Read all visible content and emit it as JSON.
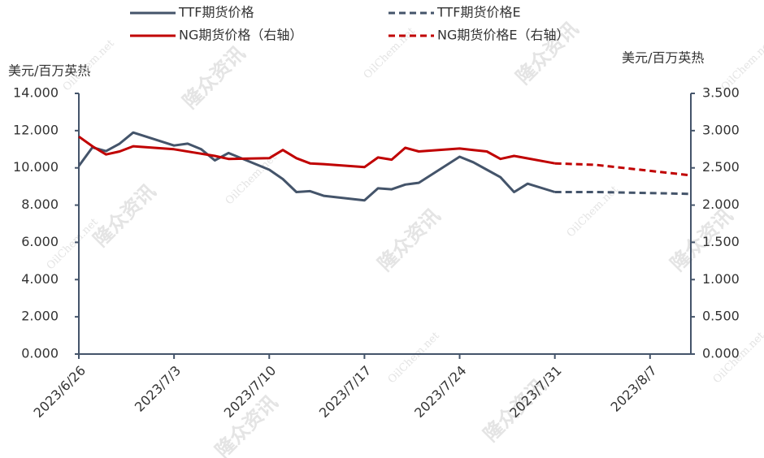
{
  "chart_data": {
    "type": "line",
    "watermark": [
      "隆众资讯",
      "OilChem.net"
    ],
    "y_label": "美元/百万英热",
    "y2_label": "美元/百万英热",
    "xlim": [
      "2023/6/26",
      "2023/8/10"
    ],
    "xticks": [
      "2023/6/26",
      "2023/7/3",
      "2023/7/10",
      "2023/7/17",
      "2023/7/24",
      "2023/7/31",
      "2023/8/7"
    ],
    "ylim": [
      0,
      14
    ],
    "yticks": [
      {
        "value": 0,
        "label": "0.000"
      },
      {
        "value": 2,
        "label": "2.000"
      },
      {
        "value": 4,
        "label": "4.000"
      },
      {
        "value": 6,
        "label": "6.000"
      },
      {
        "value": 8,
        "label": "8.000"
      },
      {
        "value": 10,
        "label": "10.000"
      },
      {
        "value": 12,
        "label": "12.000"
      },
      {
        "value": 14,
        "label": "14.000"
      }
    ],
    "y2lim": [
      0,
      3.5
    ],
    "y2ticks": [
      {
        "value": 0,
        "label": "0.000"
      },
      {
        "value": 0.5,
        "label": "0.500"
      },
      {
        "value": 1,
        "label": "1.000"
      },
      {
        "value": 1.5,
        "label": "1.500"
      },
      {
        "value": 2,
        "label": "2.000"
      },
      {
        "value": 2.5,
        "label": "2.500"
      },
      {
        "value": 3,
        "label": "3.000"
      },
      {
        "value": 3.5,
        "label": "3.500"
      }
    ],
    "series": [
      {
        "name": "TTF期货价格",
        "color": "#44546a",
        "dashed": false,
        "x": [
          "2023/6/26",
          "2023/6/27",
          "2023/6/28",
          "2023/6/29",
          "2023/6/30",
          "2023/7/3",
          "2023/7/4",
          "2023/7/5",
          "2023/7/6",
          "2023/7/7",
          "2023/7/10",
          "2023/7/11",
          "2023/7/12",
          "2023/7/13",
          "2023/7/14",
          "2023/7/17",
          "2023/7/18",
          "2023/7/19",
          "2023/7/20",
          "2023/7/21",
          "2023/7/24",
          "2023/7/25",
          "2023/7/26",
          "2023/7/27",
          "2023/7/28",
          "2023/7/29",
          "2023/7/31"
        ],
        "values": [
          10.1,
          11.1,
          10.9,
          11.3,
          11.9,
          11.2,
          11.3,
          11.0,
          10.4,
          10.8,
          9.9,
          9.4,
          8.7,
          8.75,
          8.5,
          8.25,
          8.9,
          8.85,
          9.1,
          9.2,
          10.6,
          10.3,
          9.9,
          9.5,
          8.7,
          9.15,
          8.7
        ]
      },
      {
        "name": "TTF期货价格E",
        "color": "#44546a",
        "dashed": true,
        "x": [
          "2023/7/31",
          "2023/8/3",
          "2023/8/7",
          "2023/8/10"
        ],
        "values": [
          8.7,
          8.7,
          8.65,
          8.6
        ]
      },
      {
        "name": "NG期货价格（右轴）",
        "color": "#c00000",
        "dashed": false,
        "axis": "y2",
        "x": [
          "2023/6/26",
          "2023/6/27",
          "2023/6/28",
          "2023/6/29",
          "2023/6/30",
          "2023/7/3",
          "2023/7/6",
          "2023/7/7",
          "2023/7/10",
          "2023/7/11",
          "2023/7/12",
          "2023/7/13",
          "2023/7/14",
          "2023/7/17",
          "2023/7/18",
          "2023/7/19",
          "2023/7/20",
          "2023/7/21",
          "2023/7/24",
          "2023/7/25",
          "2023/7/26",
          "2023/7/27",
          "2023/7/28",
          "2023/7/31"
        ],
        "values": [
          2.92,
          2.79,
          2.68,
          2.72,
          2.79,
          2.75,
          2.66,
          2.62,
          2.63,
          2.74,
          2.63,
          2.56,
          2.55,
          2.51,
          2.64,
          2.61,
          2.77,
          2.72,
          2.76,
          2.74,
          2.72,
          2.62,
          2.66,
          2.56
        ]
      },
      {
        "name": "NG期货价格E（右轴）",
        "color": "#c00000",
        "dashed": true,
        "axis": "y2",
        "x": [
          "2023/7/31",
          "2023/8/3",
          "2023/8/7",
          "2023/8/10"
        ],
        "values": [
          2.56,
          2.54,
          2.46,
          2.4
        ]
      }
    ]
  }
}
